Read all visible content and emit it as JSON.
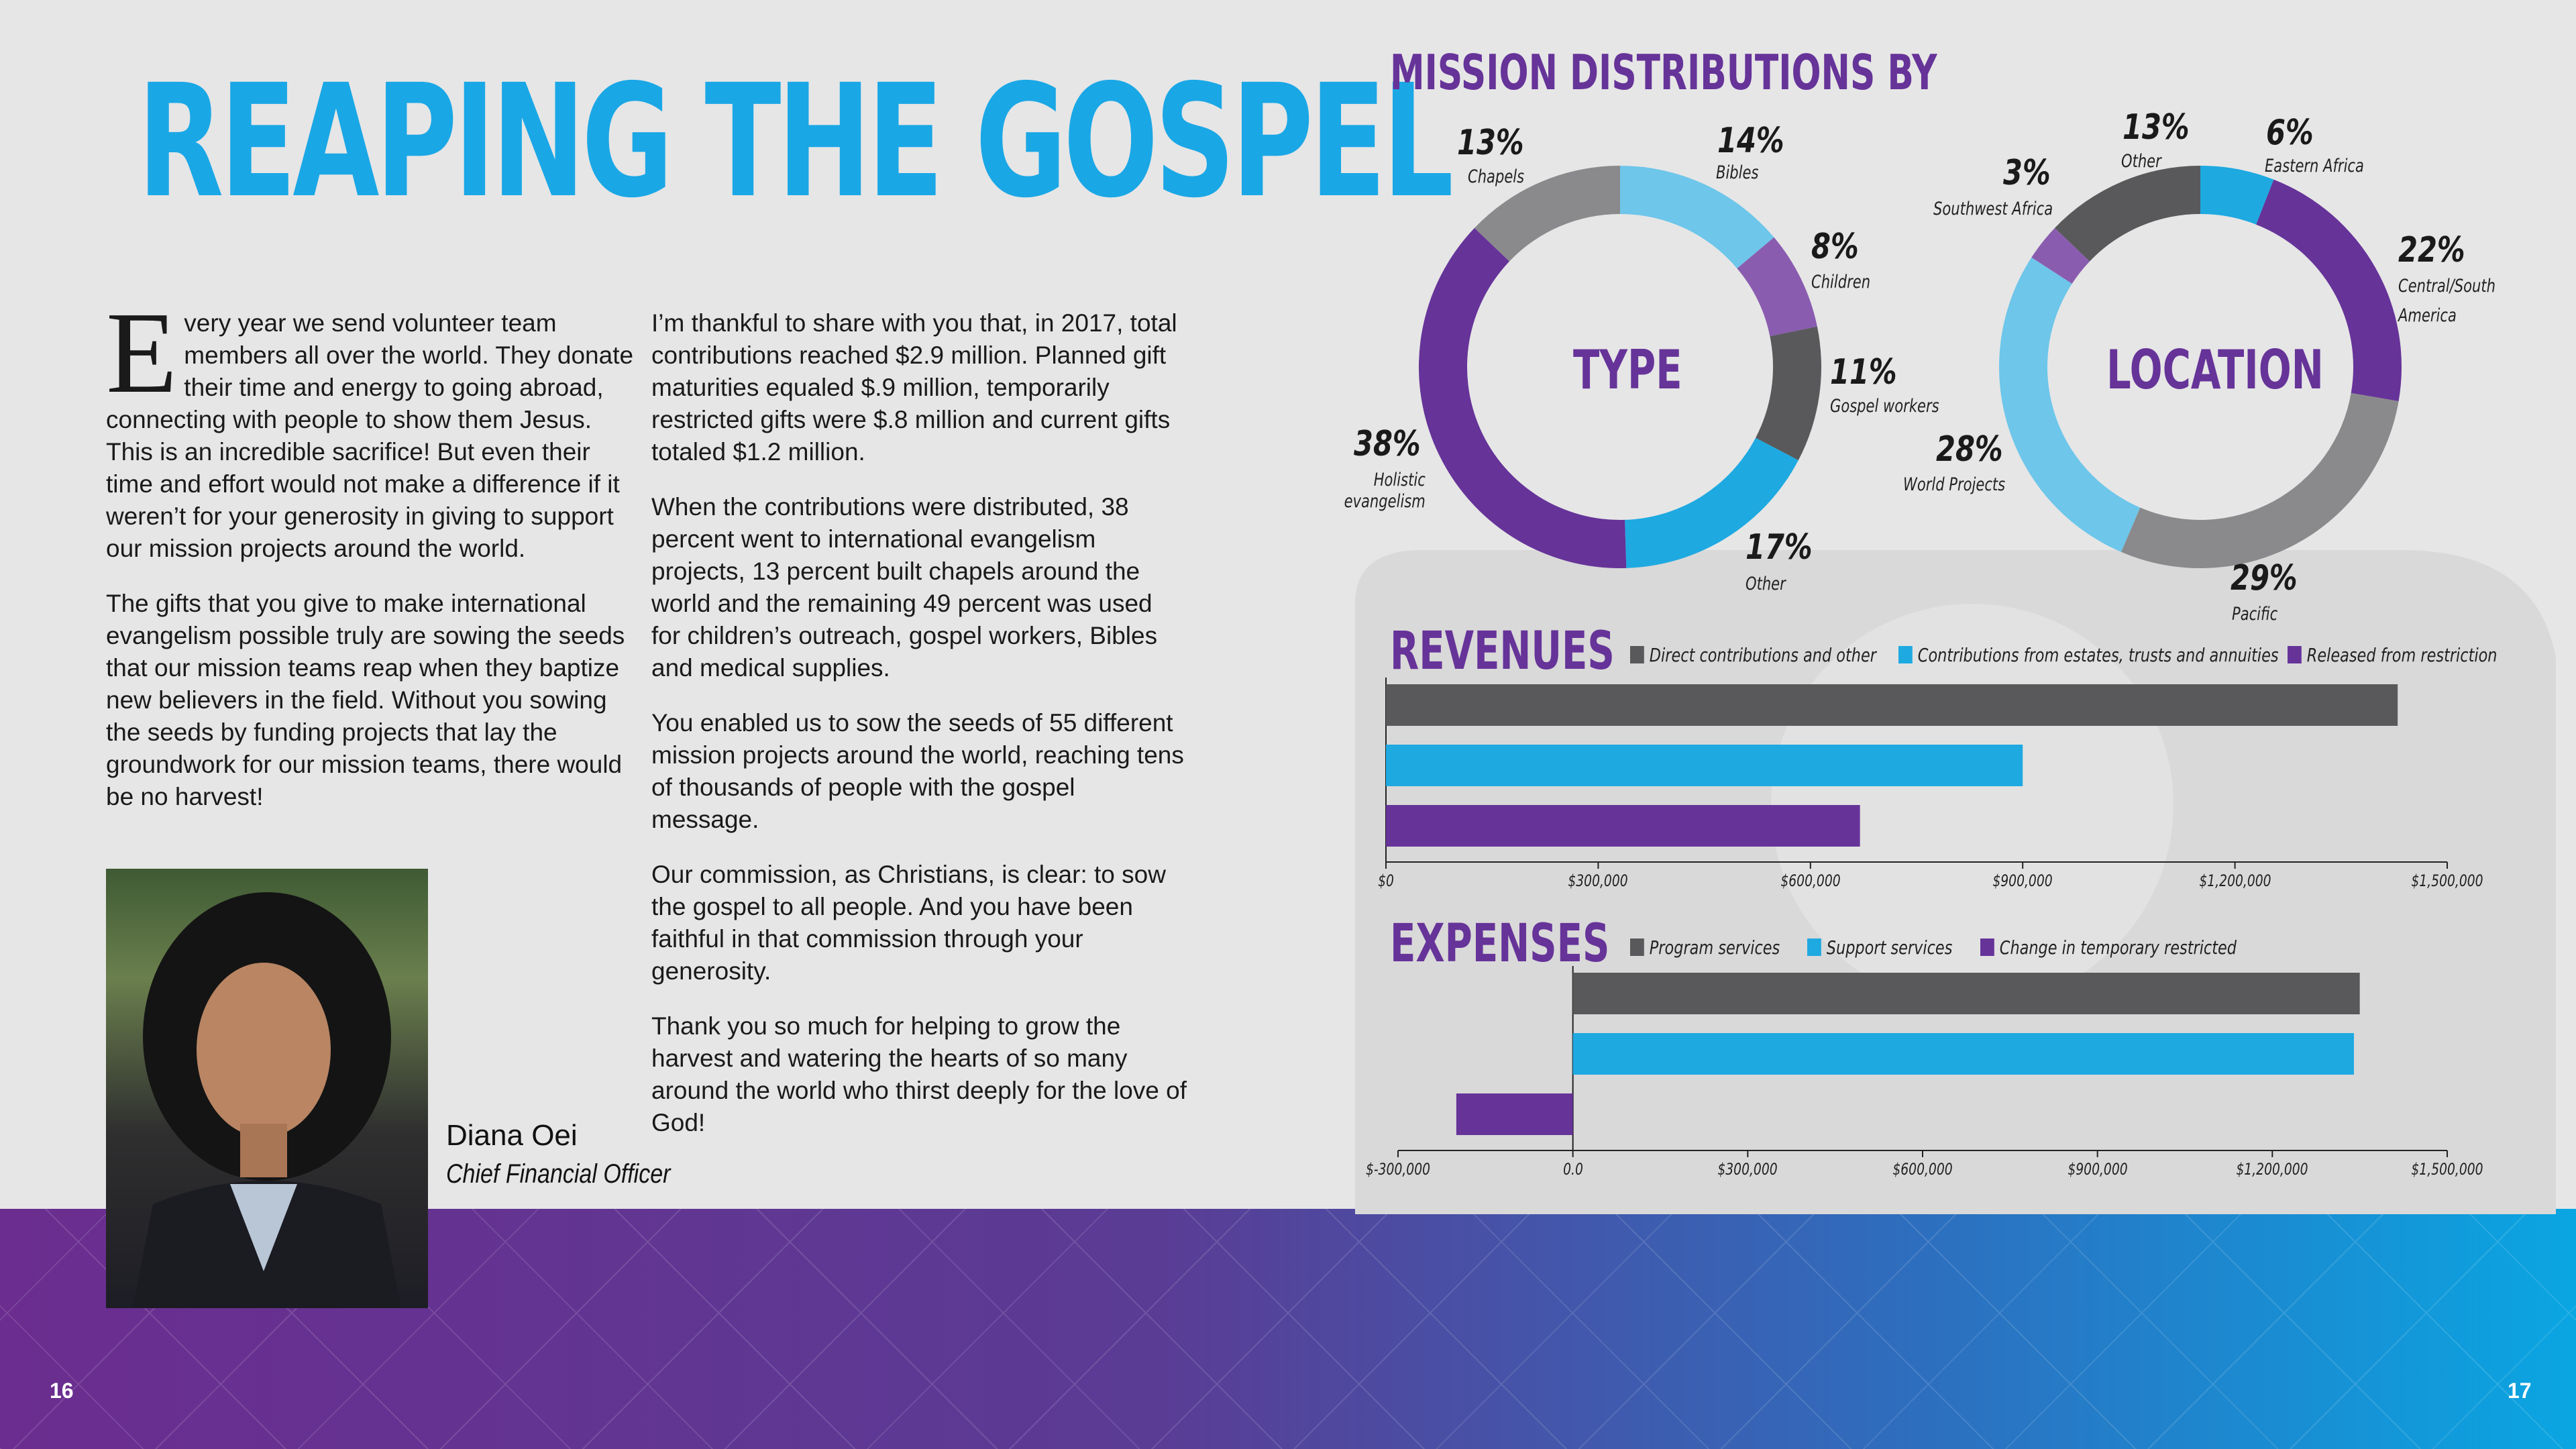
{
  "left_page": {
    "title": "REAPING THE GOSPEL",
    "col1": {
      "dropcap": "E",
      "para1": "very year we send volunteer team members all over the world. They donate their time and energy to going abroad, connecting with people to show them Jesus. This is an incredible sacrifice! But even their time and effort would not make a difference if it weren’t for your generosity in giving to support our mission projects around the world.",
      "para2": "The gifts that you give to make international evangelism possible truly are sowing the seeds that our mission teams reap when they baptize new believers in the field. Without you sowing the seeds by funding projects that lay the groundwork for our mission teams, there would be no harvest!"
    },
    "col2": {
      "para1": "I’m thankful to share with you that, in 2017, total contributions reached $2.9 million. Planned gift maturities equaled $.9 million, temporarily restricted gifts were $.8 million and current gifts totaled $1.2 million.",
      "para2": "When the contributions were distributed, 38 percent went to international evangelism projects, 13 percent built chapels around the world and the remaining 49 percent was used for children’s outreach, gospel workers, Bibles and medical supplies.",
      "para3": "You enabled us to sow the seeds of 55 different mission projects around the world, reaching tens of thousands of people with the gospel message.",
      "para4": "Our commission, as Christians, is clear: to sow the gospel to all people. And you have been faithful in that commission through your generosity.",
      "para5": "Thank you so much for helping to grow the harvest and watering the hearts of so many around the world who thirst deeply for the love of God!"
    },
    "signature": {
      "name": "Diana Oei",
      "role": "Chief Financial Officer"
    },
    "page_number": "16"
  },
  "right_page": {
    "heading": "MISSION DISTRIBUTIONS BY",
    "page_number": "17",
    "revenues_title": "REVENUES",
    "expenses_title": "EXPENSES"
  },
  "colors": {
    "gray": "#59595b",
    "lightgray": "#8a8a8c",
    "cyan": "#1ea9e1",
    "lightblue": "#6ec6ea",
    "purple": "#663399",
    "lightpurple": "#8a5cb0",
    "title_blue": "#1aa7e6",
    "heading_purple": "#663399"
  },
  "chart_data": [
    {
      "type": "pie",
      "title": "TYPE",
      "slices": [
        {
          "label": "Bibles",
          "value": 14,
          "pct": "14%",
          "color": "#6ec6ea"
        },
        {
          "label": "Children",
          "value": 8,
          "pct": "8%",
          "color": "#8a5cb0"
        },
        {
          "label": "Gospel workers",
          "value": 11,
          "pct": "11%",
          "color": "#59595b"
        },
        {
          "label": "Other",
          "value": 17,
          "pct": "17%",
          "color": "#1ea9e1"
        },
        {
          "label": "Holistic evangelism",
          "value": 38,
          "pct": "38%",
          "color": "#663399"
        },
        {
          "label": "Chapels",
          "value": 13,
          "pct": "13%",
          "color": "#8a8a8c"
        }
      ]
    },
    {
      "type": "pie",
      "title": "LOCATION",
      "slices": [
        {
          "label": "Eastern Africa",
          "value": 6,
          "pct": "6%",
          "color": "#1ea9e1"
        },
        {
          "label": "Central/South America",
          "value": 22,
          "pct": "22%",
          "color": "#663399"
        },
        {
          "label": "Pacific",
          "value": 29,
          "pct": "29%",
          "color": "#8a8a8c"
        },
        {
          "label": "World Projects",
          "value": 28,
          "pct": "28%",
          "color": "#6ec6ea"
        },
        {
          "label": "Southwest Africa",
          "value": 3,
          "pct": "3%",
          "color": "#8a5cb0"
        },
        {
          "label": "Other",
          "value": 13,
          "pct": "13%",
          "color": "#59595b"
        }
      ]
    },
    {
      "type": "bar",
      "orientation": "horizontal",
      "title": "REVENUES",
      "series": [
        {
          "name": "Direct contributions and other",
          "value": 1430000,
          "color": "#59595b"
        },
        {
          "name": "Contributions from estates, trusts and annuities",
          "value": 900000,
          "color": "#1ea9e1"
        },
        {
          "name": "Released from restriction",
          "value": 670000,
          "color": "#663399"
        }
      ],
      "xlim": [
        0,
        1500000
      ],
      "ticks": [
        "$0",
        "$300,000",
        "$600,000",
        "$900,000",
        "$1,200,000",
        "$1,500,000"
      ],
      "tick_values": [
        0,
        300000,
        600000,
        900000,
        1200000,
        1500000
      ]
    },
    {
      "type": "bar",
      "orientation": "horizontal",
      "title": "EXPENSES",
      "series": [
        {
          "name": "Program services",
          "value": 1350000,
          "color": "#59595b"
        },
        {
          "name": "Support services",
          "value": 1340000,
          "color": "#1ea9e1"
        },
        {
          "name": "Change in temporary restricted",
          "value": -200000,
          "color": "#663399"
        }
      ],
      "xlim": [
        -300000,
        1500000
      ],
      "ticks": [
        "$-300,000",
        "0.0",
        "$300,000",
        "$600,000",
        "$900,000",
        "$1,200,000",
        "$1,500,000"
      ],
      "tick_values": [
        -300000,
        0,
        300000,
        600000,
        900000,
        1200000,
        1500000
      ]
    }
  ]
}
